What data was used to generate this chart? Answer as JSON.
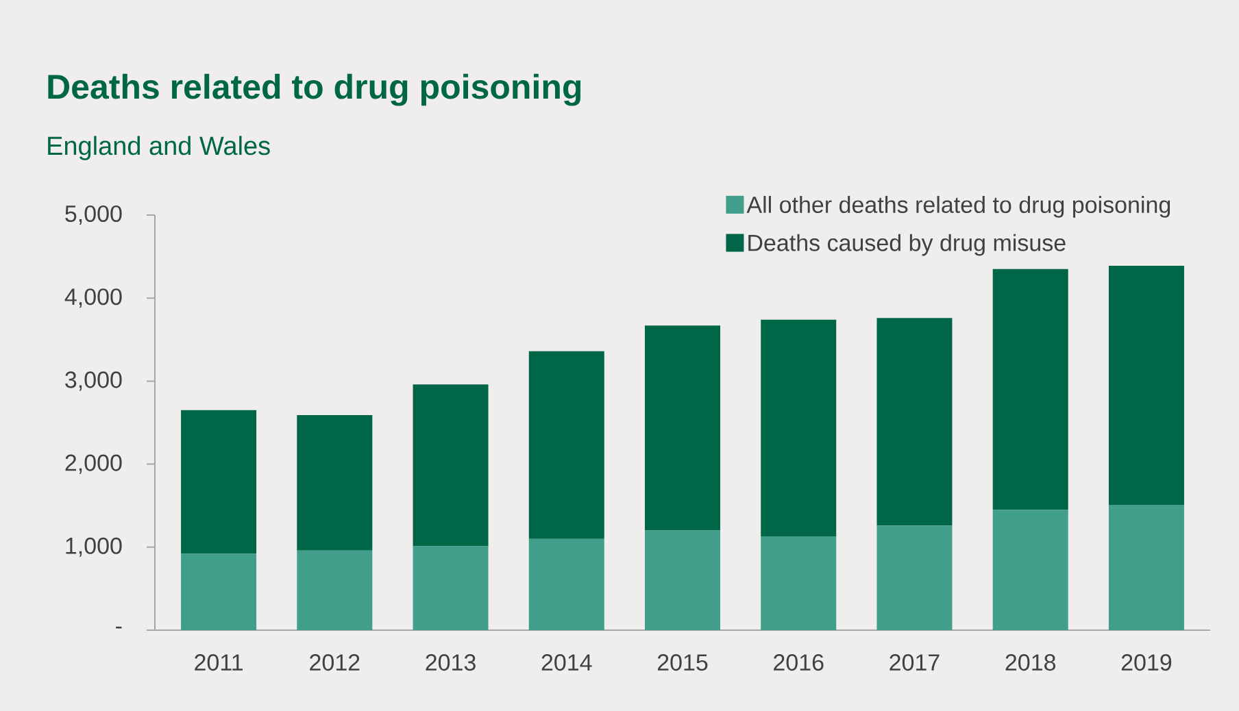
{
  "chart_data": {
    "type": "bar",
    "title": "Deaths related to drug poisoning",
    "subtitle": "England and Wales",
    "categories": [
      "2011",
      "2012",
      "2013",
      "2014",
      "2015",
      "2016",
      "2017",
      "2018",
      "2019"
    ],
    "stacked": true,
    "series": [
      {
        "name": "All other deaths related to drug poisoning",
        "color": "#419e8a",
        "values": [
          920,
          960,
          1010,
          1100,
          1200,
          1130,
          1260,
          1450,
          1510
        ]
      },
      {
        "name": "Deaths caused by drug misuse",
        "color": "#006648",
        "values": [
          1730,
          1630,
          1950,
          2260,
          2470,
          2610,
          2500,
          2900,
          2880
        ]
      }
    ],
    "ylim": [
      0,
      5000
    ],
    "yticks": [
      {
        "value": 0,
        "label": "-"
      },
      {
        "value": 1000,
        "label": "1,000"
      },
      {
        "value": 2000,
        "label": "2,000"
      },
      {
        "value": 3000,
        "label": "3,000"
      },
      {
        "value": 4000,
        "label": "4,000"
      },
      {
        "value": 5000,
        "label": "5,000"
      }
    ],
    "grid": false,
    "legend": "top right"
  }
}
